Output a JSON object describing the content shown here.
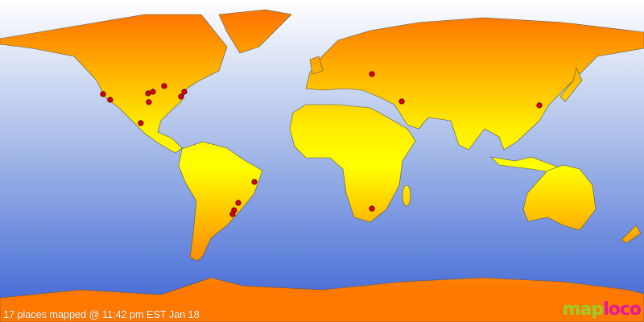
{
  "caption": "17 places mapped @ 11:42 pm EST Jan 18",
  "logo": {
    "part1": "map",
    "part2": "loco"
  },
  "colors": {
    "ocean_top": "#ffffff",
    "ocean_bottom": "#3a62d4",
    "land_polar": "#ff7800",
    "land_equator": "#ffff00",
    "marker": "#dd0000"
  },
  "markers": [
    {
      "lat": 37.4,
      "lon": -122.4
    },
    {
      "lat": 34.2,
      "lon": -118.4
    },
    {
      "lat": 21.2,
      "lon": -101.3
    },
    {
      "lat": 37.8,
      "lon": -97.2
    },
    {
      "lat": 38.7,
      "lon": -94.5
    },
    {
      "lat": 32.9,
      "lon": -96.8
    },
    {
      "lat": 41.9,
      "lon": -88.2
    },
    {
      "lat": 38.7,
      "lon": -77.0
    },
    {
      "lat": 36.0,
      "lon": -78.8
    },
    {
      "lat": -11.7,
      "lon": -37.8
    },
    {
      "lat": -23.4,
      "lon": -46.8
    },
    {
      "lat": -27.5,
      "lon": -49.1
    },
    {
      "lat": -29.7,
      "lon": -50.0
    },
    {
      "lat": 48.6,
      "lon": 27.9
    },
    {
      "lat": 33.3,
      "lon": 44.6
    },
    {
      "lat": -26.6,
      "lon": 27.9
    },
    {
      "lat": 31.1,
      "lon": 121.5
    }
  ]
}
